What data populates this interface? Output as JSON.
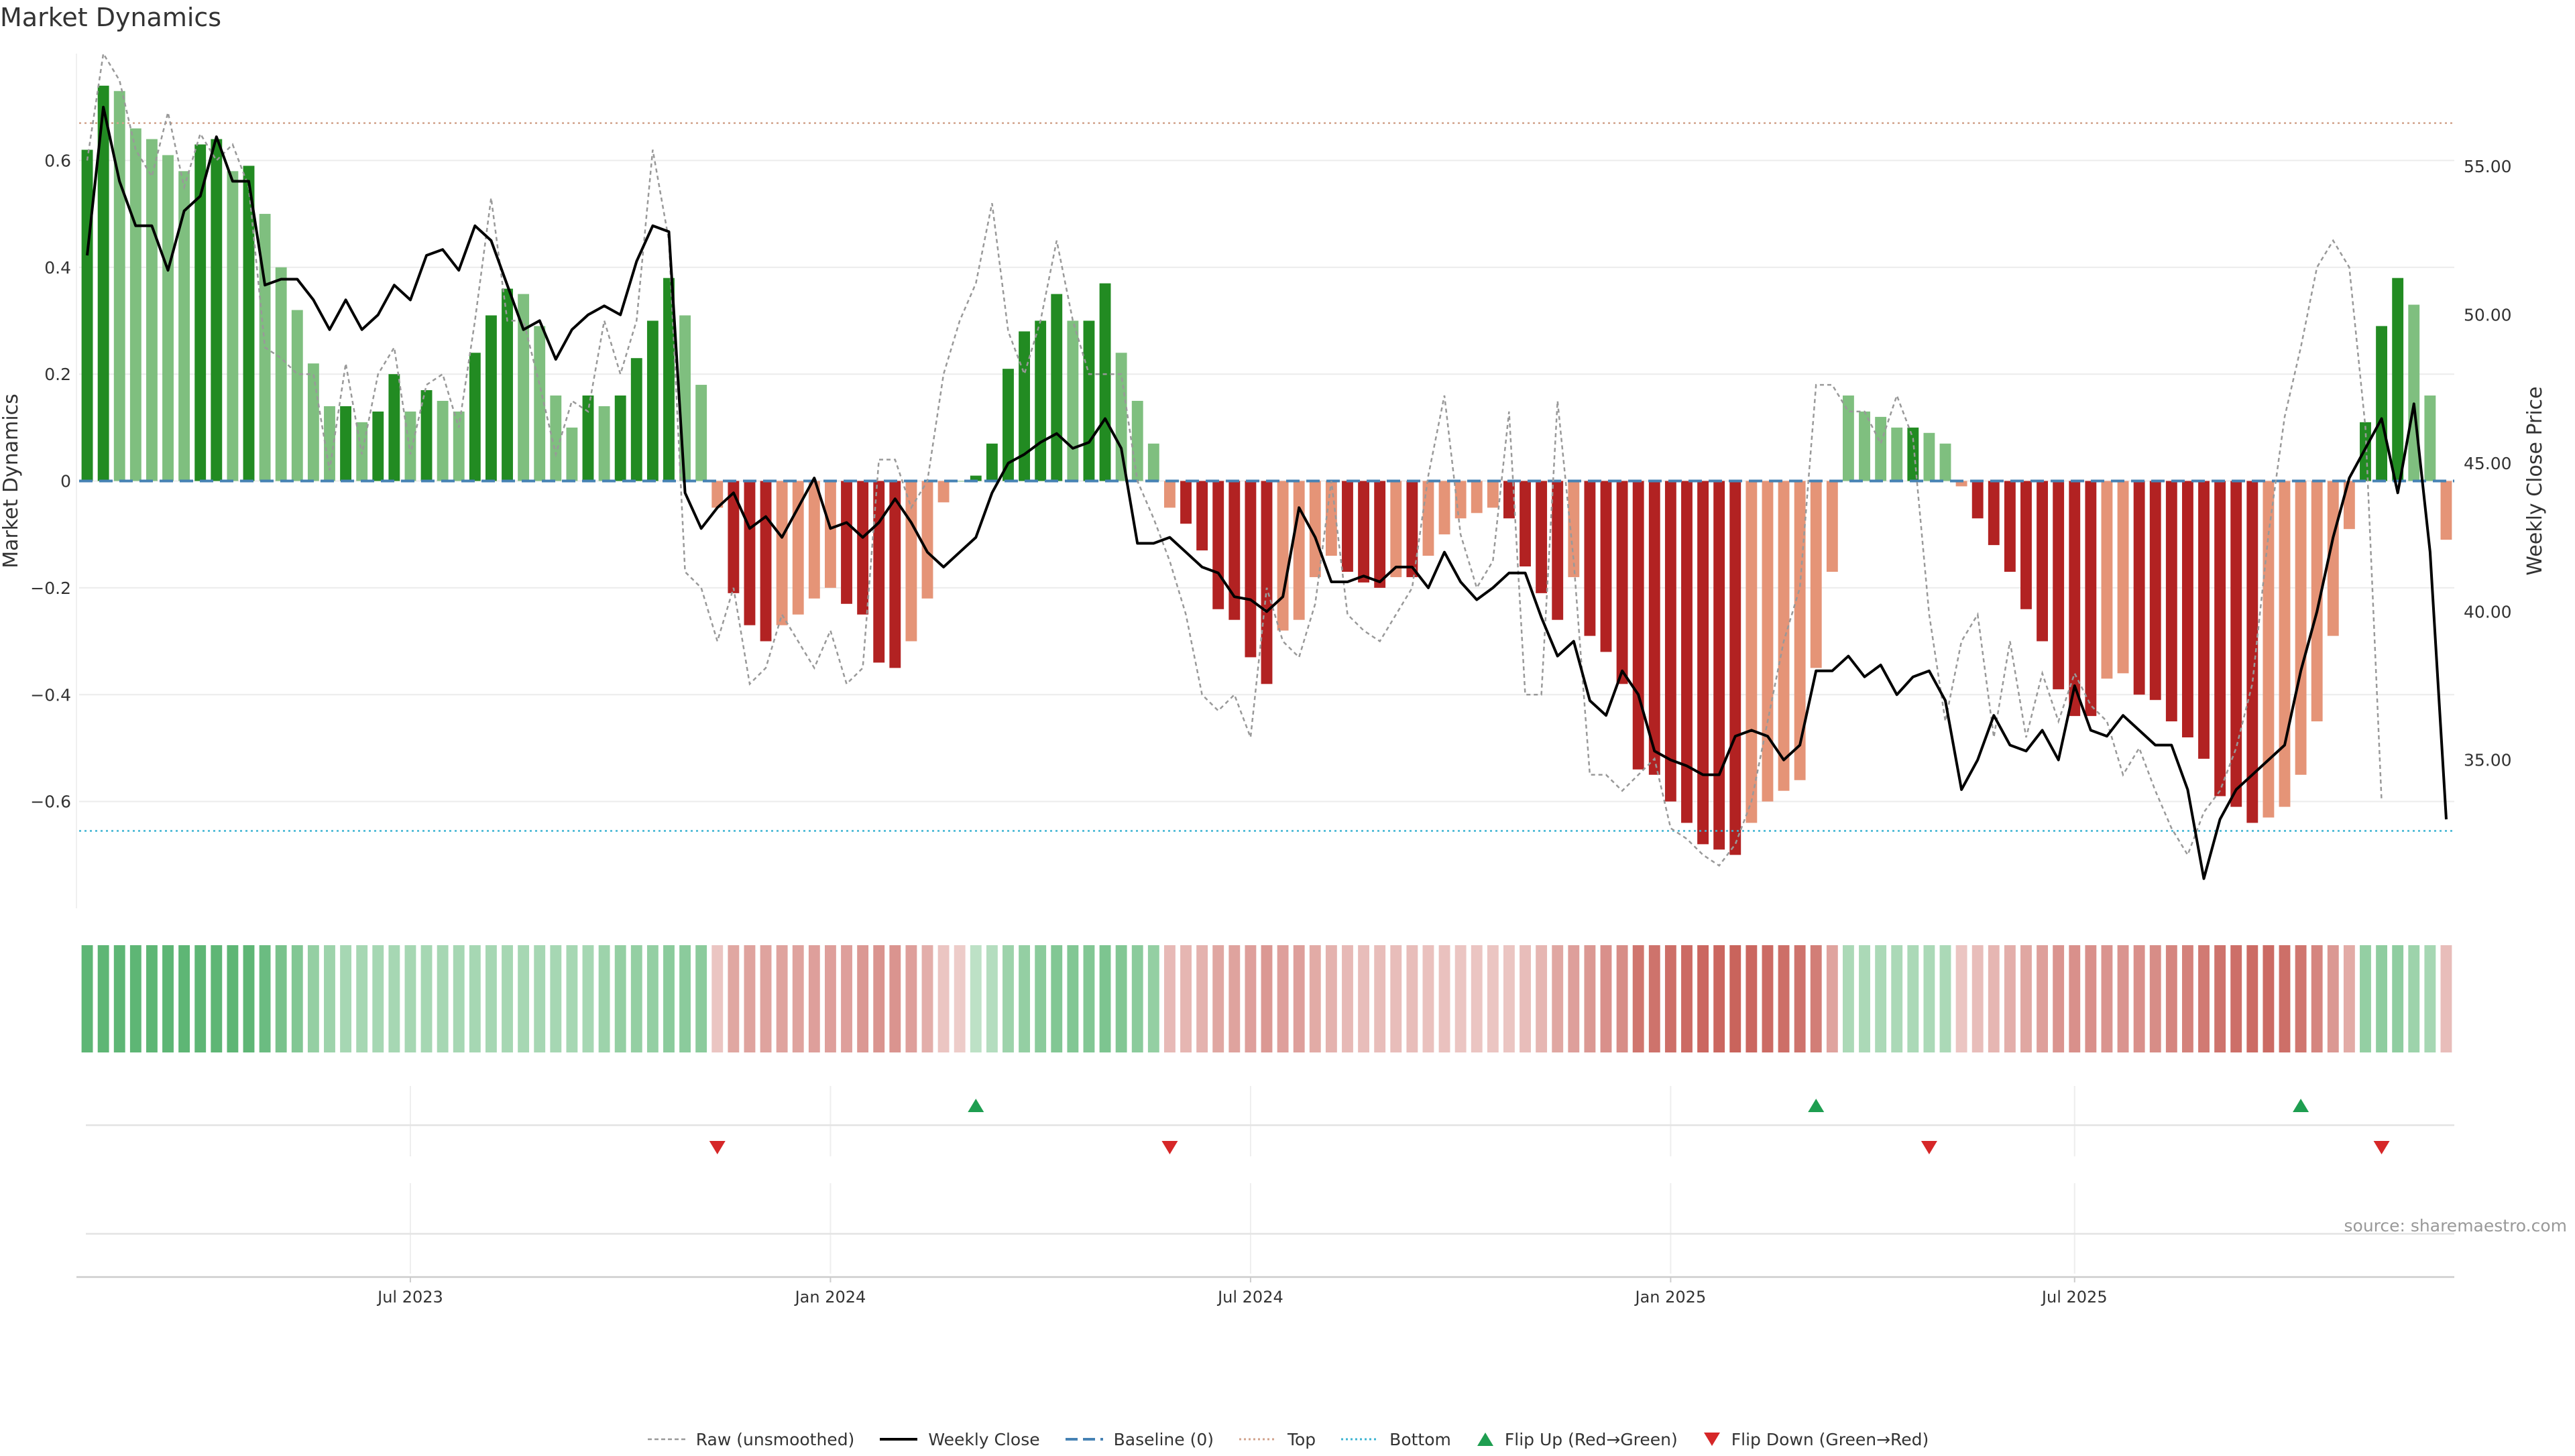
{
  "chart_data": {
    "type": "bar",
    "title": "Market Dynamics",
    "ylabel": "Market Dynamics",
    "y2label": "Weekly Close Price",
    "ylim": [
      -0.8,
      0.8
    ],
    "y2lim": [
      30.0,
      58.8
    ],
    "yticks": [
      "0.6",
      "0.4",
      "0.2",
      "0",
      "−0.2",
      "−0.4",
      "−0.6"
    ],
    "yticks_values": [
      0.6,
      0.4,
      0.2,
      0,
      -0.2,
      -0.4,
      -0.6
    ],
    "y2ticks": [
      "55.00",
      "50.00",
      "45.00",
      "40.00",
      "35.00"
    ],
    "y2ticks_values": [
      55,
      50,
      45,
      40,
      35
    ],
    "xticks": [
      "Jul 2023",
      "Jan 2024",
      "Jul 2024",
      "Jan 2025",
      "Jul 2025"
    ],
    "xticks_week_index": [
      20,
      46,
      72,
      98,
      123
    ],
    "top_line": 0.67,
    "bottom_line": -0.655,
    "baseline": 0,
    "grid": true,
    "legend_position": "bottom",
    "legend": {
      "raw": "Raw (unsmoothed)",
      "close": "Weekly Close",
      "baseline": "Baseline (0)",
      "top": "Top",
      "bottom": "Bottom",
      "flip_up": "Flip Up (Red→Green)",
      "flip_down": "Flip Down (Green→Red)"
    },
    "flip_up_week_index": [
      55,
      107,
      137
    ],
    "flip_down_week_index": [
      39,
      67,
      114,
      142
    ],
    "series": [
      {
        "name": "Market Dynamics",
        "values": [
          0.62,
          0.74,
          0.73,
          0.66,
          0.64,
          0.61,
          0.58,
          0.63,
          0.64,
          0.58,
          0.59,
          0.5,
          0.4,
          0.32,
          0.22,
          0.14,
          0.14,
          0.11,
          0.13,
          0.2,
          0.13,
          0.17,
          0.15,
          0.13,
          0.24,
          0.31,
          0.36,
          0.35,
          0.29,
          0.16,
          0.1,
          0.16,
          0.14,
          0.16,
          0.23,
          0.3,
          0.38,
          0.31,
          0.18,
          -0.05,
          -0.21,
          -0.27,
          -0.3,
          -0.27,
          -0.25,
          -0.22,
          -0.2,
          -0.23,
          -0.25,
          -0.34,
          -0.35,
          -0.3,
          -0.22,
          -0.04,
          0.0,
          0.01,
          0.07,
          0.21,
          0.28,
          0.3,
          0.35,
          0.3,
          0.3,
          0.37,
          0.24,
          0.15,
          0.07,
          -0.05,
          -0.08,
          -0.13,
          -0.24,
          -0.26,
          -0.33,
          -0.38,
          -0.28,
          -0.26,
          -0.18,
          -0.14,
          -0.17,
          -0.19,
          -0.2,
          -0.18,
          -0.18,
          -0.14,
          -0.1,
          -0.07,
          -0.06,
          -0.05,
          -0.07,
          -0.16,
          -0.21,
          -0.26,
          -0.18,
          -0.29,
          -0.32,
          -0.38,
          -0.54,
          -0.55,
          -0.6,
          -0.64,
          -0.68,
          -0.69,
          -0.7,
          -0.64,
          -0.6,
          -0.58,
          -0.56,
          -0.35,
          -0.17,
          0.16,
          0.13,
          0.12,
          0.1,
          0.1,
          0.09,
          0.07,
          -0.01,
          -0.07,
          -0.12,
          -0.17,
          -0.24,
          -0.3,
          -0.39,
          -0.44,
          -0.44,
          -0.37,
          -0.36,
          -0.4,
          -0.41,
          -0.45,
          -0.48,
          -0.52,
          -0.59,
          -0.61,
          -0.64,
          -0.63,
          -0.61,
          -0.55,
          -0.45,
          -0.29,
          -0.09,
          0.11,
          0.29,
          0.38,
          0.33,
          0.16,
          -0.11
        ]
      },
      {
        "name": "Raw (unsmoothed)",
        "values": [
          0.6,
          0.8,
          0.75,
          0.62,
          0.57,
          0.69,
          0.55,
          0.65,
          0.6,
          0.63,
          0.55,
          0.25,
          0.23,
          0.2,
          0.2,
          0.02,
          0.22,
          0.05,
          0.2,
          0.25,
          0.05,
          0.18,
          0.2,
          0.1,
          0.3,
          0.53,
          0.3,
          0.3,
          0.18,
          0.05,
          0.15,
          0.13,
          0.3,
          0.2,
          0.3,
          0.62,
          0.45,
          -0.17,
          -0.2,
          -0.3,
          -0.2,
          -0.38,
          -0.35,
          -0.25,
          -0.3,
          -0.35,
          -0.28,
          -0.38,
          -0.35,
          0.04,
          0.04,
          -0.05,
          0.0,
          0.2,
          0.3,
          0.37,
          0.52,
          0.28,
          0.2,
          0.3,
          0.45,
          0.3,
          0.2,
          0.2,
          0.2,
          0.0,
          -0.07,
          -0.15,
          -0.25,
          -0.4,
          -0.43,
          -0.4,
          -0.48,
          -0.2,
          -0.3,
          -0.33,
          -0.23,
          0.0,
          -0.25,
          -0.28,
          -0.3,
          -0.25,
          -0.2,
          0.01,
          0.16,
          -0.1,
          -0.2,
          -0.15,
          0.13,
          -0.4,
          -0.4,
          0.15,
          -0.15,
          -0.55,
          -0.55,
          -0.58,
          -0.55,
          -0.52,
          -0.65,
          -0.67,
          -0.7,
          -0.72,
          -0.68,
          -0.6,
          -0.45,
          -0.3,
          -0.2,
          0.18,
          0.18,
          0.13,
          0.13,
          0.07,
          0.16,
          0.08,
          -0.25,
          -0.45,
          -0.3,
          -0.25,
          -0.48,
          -0.3,
          -0.48,
          -0.36,
          -0.45,
          -0.36,
          -0.42,
          -0.45,
          -0.55,
          -0.5,
          -0.58,
          -0.65,
          -0.7,
          -0.62,
          -0.58,
          -0.5,
          -0.38,
          -0.1,
          0.12,
          0.25,
          0.4,
          0.45,
          0.4,
          0.1,
          -0.6
        ]
      },
      {
        "name": "Weekly Close",
        "values": [
          52.0,
          57.0,
          54.5,
          53.0,
          53.0,
          51.5,
          53.5,
          54.0,
          56.0,
          54.5,
          54.5,
          51.0,
          51.2,
          51.2,
          50.5,
          49.5,
          50.5,
          49.5,
          50.0,
          51.0,
          50.5,
          52.0,
          52.2,
          51.5,
          53.0,
          52.5,
          51.0,
          49.5,
          49.8,
          48.5,
          49.5,
          50.0,
          50.3,
          50.0,
          51.8,
          53.0,
          52.8,
          44.0,
          42.8,
          43.5,
          44.0,
          42.8,
          43.2,
          42.5,
          43.5,
          44.5,
          42.8,
          43.0,
          42.5,
          43.0,
          43.8,
          43.0,
          42.0,
          41.5,
          42.0,
          42.5,
          44.0,
          45.0,
          45.3,
          45.7,
          46.0,
          45.5,
          45.7,
          46.5,
          45.5,
          42.3,
          42.3,
          42.5,
          42.0,
          41.5,
          41.3,
          40.5,
          40.4,
          40.0,
          40.5,
          43.5,
          42.5,
          41.0,
          41.0,
          41.2,
          41.0,
          41.5,
          41.5,
          40.8,
          42.0,
          41.0,
          40.4,
          40.8,
          41.3,
          41.3,
          39.8,
          38.5,
          39.0,
          37.0,
          36.5,
          38.0,
          37.2,
          35.3,
          35.0,
          34.8,
          34.5,
          34.5,
          35.8,
          36.0,
          35.8,
          35.0,
          35.5,
          38.0,
          38.0,
          38.5,
          37.8,
          38.2,
          37.2,
          37.8,
          38.0,
          37.0,
          34.0,
          35.0,
          36.5,
          35.5,
          35.3,
          36.0,
          35.0,
          37.5,
          36.0,
          35.8,
          36.5,
          36.0,
          35.5,
          35.5,
          34.0,
          31.0,
          33.0,
          34.0,
          34.5,
          35.0,
          35.5,
          38.0,
          40.0,
          42.5,
          44.5,
          45.5,
          46.5,
          44.0,
          47.0,
          42.0,
          33.0
        ]
      }
    ],
    "heat_values": [
      0.56,
      0.56,
      0.56,
      0.56,
      0.56,
      0.56,
      0.56,
      0.56,
      0.56,
      0.56,
      0.56,
      0.5,
      0.44,
      0.4,
      0.32,
      0.28,
      0.24,
      0.24,
      0.24,
      0.24,
      0.24,
      0.24,
      0.24,
      0.24,
      0.24,
      0.24,
      0.24,
      0.24,
      0.24,
      0.24,
      0.24,
      0.24,
      0.28,
      0.32,
      0.32,
      0.32,
      0.36,
      0.36,
      0.36,
      -0.16,
      -0.32,
      -0.34,
      -0.34,
      -0.34,
      -0.34,
      -0.36,
      -0.36,
      -0.36,
      -0.4,
      -0.42,
      -0.42,
      -0.36,
      -0.28,
      -0.16,
      -0.12,
      0.14,
      0.18,
      0.28,
      0.32,
      0.36,
      0.4,
      0.4,
      0.4,
      0.42,
      0.4,
      0.36,
      0.32,
      -0.22,
      -0.24,
      -0.26,
      -0.32,
      -0.34,
      -0.36,
      -0.4,
      -0.36,
      -0.36,
      -0.3,
      -0.26,
      -0.22,
      -0.2,
      -0.2,
      -0.2,
      -0.2,
      -0.18,
      -0.18,
      -0.16,
      -0.16,
      -0.16,
      -0.16,
      -0.2,
      -0.24,
      -0.32,
      -0.36,
      -0.4,
      -0.44,
      -0.46,
      -0.58,
      -0.6,
      -0.62,
      -0.64,
      -0.66,
      -0.66,
      -0.68,
      -0.66,
      -0.64,
      -0.62,
      -0.6,
      -0.54,
      -0.34,
      0.22,
      0.22,
      0.22,
      0.22,
      0.22,
      0.22,
      0.22,
      -0.16,
      -0.2,
      -0.24,
      -0.28,
      -0.32,
      -0.36,
      -0.42,
      -0.44,
      -0.44,
      -0.42,
      -0.42,
      -0.44,
      -0.46,
      -0.5,
      -0.52,
      -0.56,
      -0.6,
      -0.62,
      -0.64,
      -0.64,
      -0.62,
      -0.58,
      -0.5,
      -0.4,
      -0.3,
      0.32,
      0.34,
      0.34,
      0.28,
      0.24,
      -0.2
    ],
    "colors": {
      "strong_up": "#228b22",
      "weak_up": "#7fbf7f",
      "strong_down": "#b22222",
      "weak_down": "#e59477",
      "raw_line": "#999999",
      "close_line": "#000000",
      "baseline": "#4682b4",
      "top": "#d2a38c",
      "bottom": "#3cb4d2",
      "flip_up": "#1e9e50",
      "flip_down": "#d62728",
      "heat_green": "#3ea85a",
      "heat_red": "#c86058"
    }
  },
  "source_text": "source: sharemaestro.com"
}
